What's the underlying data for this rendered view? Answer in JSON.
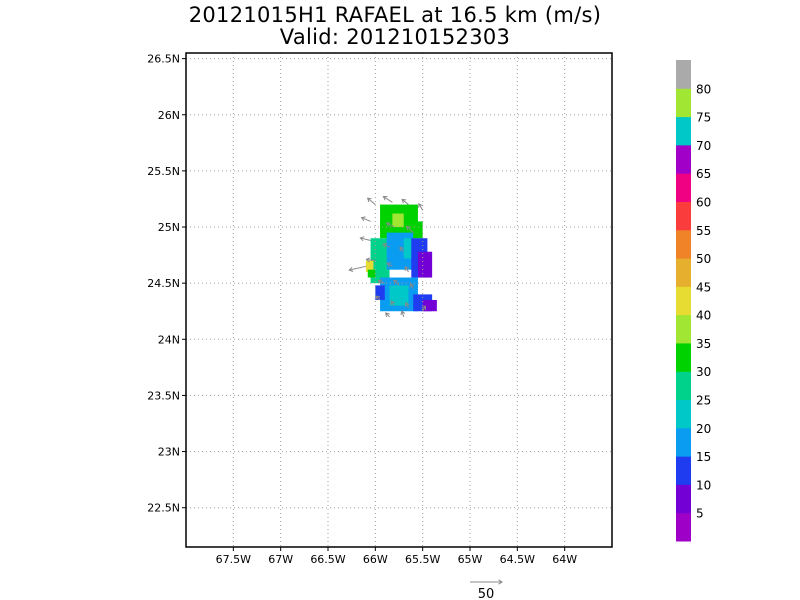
{
  "title": "20121015H1 RAFAEL at 16.5 km (m/s)",
  "subtitle": "Valid: 201210152303",
  "colors": {
    "frame": "#000000",
    "grid": "#a0a0a0",
    "vector": "#888888"
  },
  "chart_data": {
    "type": "heatmap",
    "xlim": [
      -68,
      -63.5
    ],
    "ylim": [
      22.15,
      26.55
    ],
    "x_ticks": [
      {
        "value": -67.5,
        "label": "67.5W"
      },
      {
        "value": -67.0,
        "label": "67W"
      },
      {
        "value": -66.5,
        "label": "66.5W"
      },
      {
        "value": -66.0,
        "label": "66W"
      },
      {
        "value": -65.5,
        "label": "65.5W"
      },
      {
        "value": -65.0,
        "label": "65W"
      },
      {
        "value": -64.5,
        "label": "64.5W"
      },
      {
        "value": -64.0,
        "label": "64W"
      }
    ],
    "y_ticks": [
      {
        "value": 22.5,
        "label": "22.5N"
      },
      {
        "value": 23.0,
        "label": "23N"
      },
      {
        "value": 23.5,
        "label": "23.5N"
      },
      {
        "value": 24.0,
        "label": "24N"
      },
      {
        "value": 24.5,
        "label": "24.5N"
      },
      {
        "value": 25.0,
        "label": "25N"
      },
      {
        "value": 25.5,
        "label": "25.5N"
      },
      {
        "value": 26.0,
        "label": "26N"
      },
      {
        "value": 26.5,
        "label": "26.5N"
      }
    ],
    "grid": true,
    "colorbar": [
      {
        "label": "5",
        "color": "#9e00c8"
      },
      {
        "label": "10",
        "color": "#7300d4"
      },
      {
        "label": "15",
        "color": "#1f3cf0"
      },
      {
        "label": "20",
        "color": "#0a9cf0"
      },
      {
        "label": "25",
        "color": "#00c8c8"
      },
      {
        "label": "30",
        "color": "#00d28c"
      },
      {
        "label": "35",
        "color": "#00d200"
      },
      {
        "label": "40",
        "color": "#a0e632"
      },
      {
        "label": "45",
        "color": "#e6dc32"
      },
      {
        "label": "50",
        "color": "#e6af2d"
      },
      {
        "label": "55",
        "color": "#f08228"
      },
      {
        "label": "60",
        "color": "#fa3c3c"
      },
      {
        "label": "65",
        "color": "#f00082"
      },
      {
        "label": "70",
        "color": "#a000c8"
      },
      {
        "label": "75",
        "color": "#00c8c8"
      },
      {
        "label": "80",
        "color": "#a0e632"
      },
      {
        "label": "",
        "color": "#aaaaaa"
      }
    ],
    "cell_size_deg": [
      0.05,
      0.05
    ],
    "cells": [
      {
        "lon": [
          -65.95,
          -65.55
        ],
        "lat": [
          24.98,
          25.2
        ],
        "value": 33
      },
      {
        "lon": [
          -65.95,
          -65.5
        ],
        "lat": [
          24.9,
          25.05
        ],
        "value": 34
      },
      {
        "lon": [
          -65.82,
          -65.7
        ],
        "lat": [
          25.0,
          25.12
        ],
        "value": 38
      },
      {
        "lon": [
          -66.05,
          -65.85
        ],
        "lat": [
          24.5,
          24.9
        ],
        "value": 28
      },
      {
        "lon": [
          -65.88,
          -65.6
        ],
        "lat": [
          24.62,
          24.95
        ],
        "value": 18
      },
      {
        "lon": [
          -65.7,
          -65.55
        ],
        "lat": [
          24.72,
          24.9
        ],
        "value": 22
      },
      {
        "lon": [
          -65.62,
          -65.45
        ],
        "lat": [
          24.55,
          24.9
        ],
        "value": 13
      },
      {
        "lon": [
          -65.55,
          -65.4
        ],
        "lat": [
          24.55,
          24.78
        ],
        "value": 8
      },
      {
        "lon": [
          -65.95,
          -65.55
        ],
        "lat": [
          24.25,
          24.55
        ],
        "value": 18
      },
      {
        "lon": [
          -65.85,
          -65.65
        ],
        "lat": [
          24.3,
          24.48
        ],
        "value": 24
      },
      {
        "lon": [
          -66.0,
          -65.9
        ],
        "lat": [
          24.35,
          24.48
        ],
        "value": 13
      },
      {
        "lon": [
          -65.6,
          -65.4
        ],
        "lat": [
          24.25,
          24.4
        ],
        "value": 12
      },
      {
        "lon": [
          -65.5,
          -65.35
        ],
        "lat": [
          24.25,
          24.35
        ],
        "value": 8
      },
      {
        "lon": [
          -66.1,
          -66.02
        ],
        "lat": [
          24.6,
          24.7
        ],
        "value": 42
      },
      {
        "lon": [
          -66.08,
          -66.0
        ],
        "lat": [
          24.55,
          24.62
        ],
        "value": 32
      }
    ],
    "vectors": [
      {
        "lon": -66.0,
        "lat": 25.2,
        "u": -12,
        "v": 10
      },
      {
        "lon": -65.82,
        "lat": 25.22,
        "u": -14,
        "v": 9
      },
      {
        "lon": -65.65,
        "lat": 25.2,
        "u": -10,
        "v": 8
      },
      {
        "lon": -65.5,
        "lat": 25.15,
        "u": -6,
        "v": 10
      },
      {
        "lon": -66.05,
        "lat": 25.05,
        "u": -14,
        "v": 6
      },
      {
        "lon": -65.8,
        "lat": 25.0,
        "u": -12,
        "v": 6
      },
      {
        "lon": -65.6,
        "lat": 24.95,
        "u": -10,
        "v": 10
      },
      {
        "lon": -66.05,
        "lat": 24.88,
        "u": -16,
        "v": 4
      },
      {
        "lon": -65.85,
        "lat": 24.82,
        "u": -10,
        "v": 5
      },
      {
        "lon": -65.7,
        "lat": 24.78,
        "u": -6,
        "v": 7
      },
      {
        "lon": -66.0,
        "lat": 24.7,
        "u": -14,
        "v": 2
      },
      {
        "lon": -65.82,
        "lat": 24.65,
        "u": -8,
        "v": 5
      },
      {
        "lon": -65.65,
        "lat": 24.6,
        "u": -5,
        "v": 8
      },
      {
        "lon": -66.1,
        "lat": 24.65,
        "u": -26,
        "v": -6
      },
      {
        "lon": -65.9,
        "lat": 24.5,
        "u": -10,
        "v": 4
      },
      {
        "lon": -65.75,
        "lat": 24.48,
        "u": -8,
        "v": 8
      },
      {
        "lon": -65.6,
        "lat": 24.45,
        "u": -4,
        "v": 8
      },
      {
        "lon": -65.95,
        "lat": 24.35,
        "u": -6,
        "v": 6
      },
      {
        "lon": -65.8,
        "lat": 24.3,
        "u": -5,
        "v": 7
      },
      {
        "lon": -65.65,
        "lat": 24.28,
        "u": -4,
        "v": 8
      },
      {
        "lon": -65.5,
        "lat": 24.25,
        "u": 4,
        "v": 8
      },
      {
        "lon": -65.85,
        "lat": 24.2,
        "u": -6,
        "v": 6
      },
      {
        "lon": -65.7,
        "lat": 24.2,
        "u": -3,
        "v": 9
      }
    ],
    "reference_vector": {
      "value": 50,
      "label": "50"
    }
  }
}
